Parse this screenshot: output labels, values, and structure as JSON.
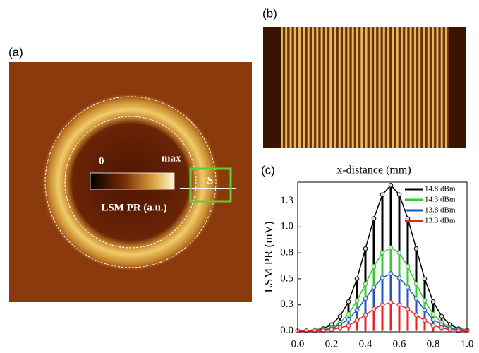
{
  "panels": {
    "a": {
      "label": "(a)",
      "colorbar_min": "0",
      "colorbar_max": "max",
      "colorbar_label": "LSM PR (a.u.)",
      "region_label": "S"
    },
    "b": {
      "label": "(b)"
    }
  },
  "chart_data": {
    "type": "line",
    "panel_label": "(c)",
    "title": "x-distance (mm)",
    "y_label": "LSM PR (mV)",
    "x": [
      0,
      0.05,
      0.1,
      0.15,
      0.2,
      0.25,
      0.3,
      0.35,
      0.4,
      0.45,
      0.5,
      0.55,
      0.6,
      0.65,
      0.7,
      0.75,
      0.8,
      0.85,
      0.9,
      0.95,
      1.0
    ],
    "series": [
      {
        "name": "14.8 dBm",
        "color": "#000000",
        "values": [
          0,
          0,
          0.01,
          0.02,
          0.06,
          0.14,
          0.28,
          0.5,
          0.79,
          1.08,
          1.31,
          1.4,
          1.31,
          1.08,
          0.79,
          0.5,
          0.28,
          0.14,
          0.06,
          0.02,
          0.01
        ]
      },
      {
        "name": "14.3 dBm",
        "color": "#33cc33",
        "values": [
          0,
          0,
          0.01,
          0.01,
          0.03,
          0.08,
          0.16,
          0.29,
          0.45,
          0.62,
          0.75,
          0.8,
          0.75,
          0.62,
          0.45,
          0.29,
          0.16,
          0.08,
          0.03,
          0.01,
          0.01
        ]
      },
      {
        "name": "13.8 dBm",
        "color": "#2255bb",
        "values": [
          0,
          0,
          0,
          0.01,
          0.02,
          0.06,
          0.11,
          0.2,
          0.31,
          0.42,
          0.51,
          0.55,
          0.51,
          0.42,
          0.31,
          0.2,
          0.11,
          0.06,
          0.02,
          0.01,
          0
        ]
      },
      {
        "name": "13.3 dBm",
        "color": "#ee2222",
        "values": [
          0,
          0,
          0,
          0,
          0.01,
          0.03,
          0.05,
          0.1,
          0.15,
          0.21,
          0.25,
          0.27,
          0.25,
          0.21,
          0.15,
          0.1,
          0.05,
          0.03,
          0.01,
          0,
          0
        ]
      }
    ],
    "xlim": [
      0,
      1
    ],
    "ylim": [
      -0.01,
      1.43
    ],
    "xticks": [
      {
        "value": 0,
        "label": "0.0"
      },
      0.2,
      0.4,
      0.6,
      0.8,
      {
        "value": 1,
        "label": "1.0"
      }
    ],
    "yticks": [
      {
        "value": 0,
        "label": "0.0"
      },
      {
        "value": 0.25,
        "label": "0.3"
      },
      0.5,
      {
        "value": 0.75,
        "label": "0.8"
      },
      {
        "value": 1,
        "label": "1.0"
      },
      {
        "value": 1.25,
        "label": "1.3"
      }
    ],
    "legend": "upper right"
  }
}
